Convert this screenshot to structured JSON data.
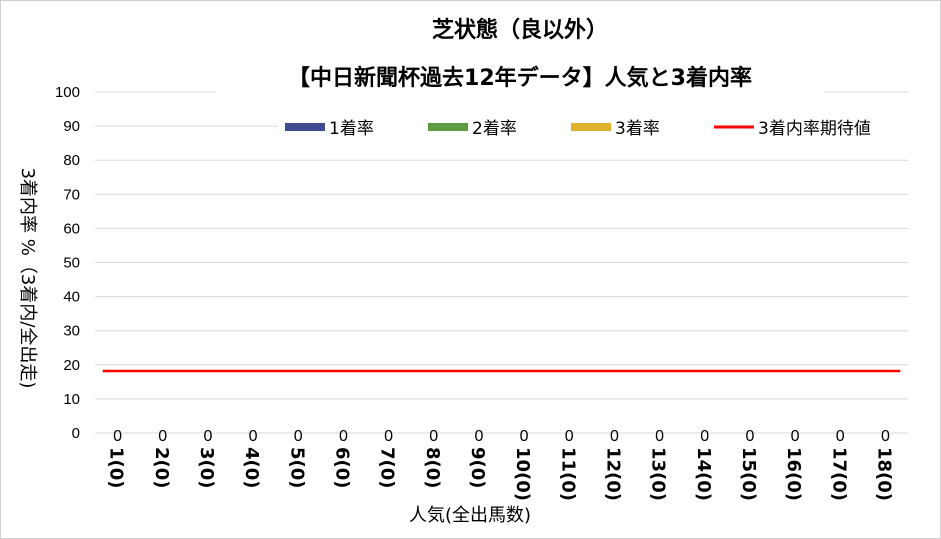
{
  "chart_data": {
    "type": "bar",
    "title_line1": "芝状態（良以外）",
    "title_line2": "【中日新聞杯過去12年データ】人気と3着内率",
    "xlabel": "人気(全出馬数)",
    "ylabel": "3着内率 %（3着内/全出走)",
    "ylim": [
      0,
      100
    ],
    "yticks": [
      "0",
      "10",
      "20",
      "30",
      "40",
      "50",
      "60",
      "70",
      "80",
      "90",
      "100"
    ],
    "categories": [
      "1(0)",
      "2(0)",
      "3(0)",
      "4(0)",
      "5(0)",
      "6(0)",
      "7(0)",
      "8(0)",
      "9(0)",
      "10(0)",
      "11(0)",
      "12(0)",
      "13(0)",
      "14(0)",
      "15(0)",
      "16(0)",
      "17(0)",
      "18(0)"
    ],
    "data_labels": [
      "0",
      "0",
      "0",
      "0",
      "0",
      "0",
      "0",
      "0",
      "0",
      "0",
      "0",
      "0",
      "0",
      "0",
      "0",
      "0",
      "0",
      "0"
    ],
    "series": [
      {
        "name": "1着率",
        "type": "bar",
        "color": "#3f4a8f",
        "values": [
          0,
          0,
          0,
          0,
          0,
          0,
          0,
          0,
          0,
          0,
          0,
          0,
          0,
          0,
          0,
          0,
          0,
          0
        ]
      },
      {
        "name": "2着率",
        "type": "bar",
        "color": "#5e9b43",
        "values": [
          0,
          0,
          0,
          0,
          0,
          0,
          0,
          0,
          0,
          0,
          0,
          0,
          0,
          0,
          0,
          0,
          0,
          0
        ]
      },
      {
        "name": "3着率",
        "type": "bar",
        "color": "#e0b12e",
        "values": [
          0,
          0,
          0,
          0,
          0,
          0,
          0,
          0,
          0,
          0,
          0,
          0,
          0,
          0,
          0,
          0,
          0,
          0
        ]
      },
      {
        "name": "3着内率期待値",
        "type": "line",
        "color": "#ff0000",
        "values": [
          18.2,
          18.2,
          18.2,
          18.2,
          18.2,
          18.2,
          18.2,
          18.2,
          18.2,
          18.2,
          18.2,
          18.2,
          18.2,
          18.2,
          18.2,
          18.2,
          18.2,
          18.2
        ]
      }
    ],
    "grid": true,
    "legend_position": "top-right"
  }
}
